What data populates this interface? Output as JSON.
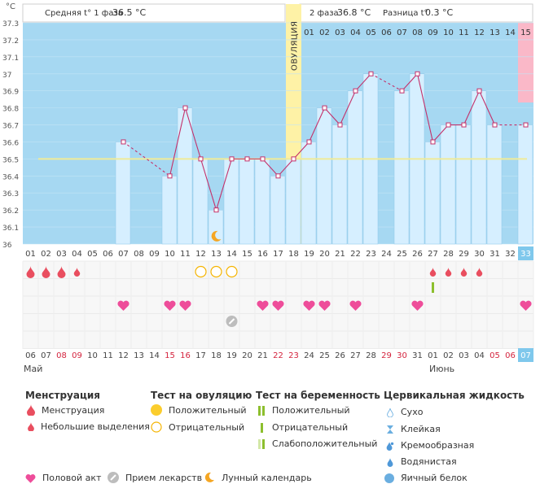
{
  "chart_data": {
    "type": "line",
    "title": "",
    "unit_label": "°C",
    "ylim": [
      36.0,
      37.3
    ],
    "y_ticks": [
      "37.3",
      "37.2",
      "37.1",
      "37",
      "36.9",
      "36.8",
      "36.7",
      "36.6",
      "36.5",
      "36.4",
      "36.3",
      "36.2",
      "36.1",
      "36"
    ],
    "header": {
      "phase1_label": "Средняя t° 1 фаза",
      "phase1_value": "36.5 °C",
      "phase2_label": "2 фаза",
      "phase2_value": "36.8 °C",
      "diff_label": "Разница t°",
      "diff_value": "0.3 °C"
    },
    "ovulation_label": "ОВУЛЯЦИЯ",
    "coverline": 36.5,
    "cycle_days": [
      "01",
      "02",
      "03",
      "04",
      "05",
      "06",
      "07",
      "08",
      "09",
      "10",
      "11",
      "12",
      "13",
      "14",
      "15",
      "16",
      "17",
      "18",
      "19",
      "20",
      "21",
      "22",
      "23",
      "24",
      "25",
      "26",
      "27",
      "28",
      "29",
      "30",
      "31",
      "32",
      "33"
    ],
    "post_ovulation_days": [
      "01",
      "02",
      "03",
      "04",
      "05",
      "06",
      "07",
      "08",
      "09",
      "10",
      "11",
      "12",
      "13",
      "14",
      "15"
    ],
    "dates": [
      "06",
      "07",
      "08",
      "09",
      "10",
      "11",
      "12",
      "13",
      "14",
      "15",
      "16",
      "17",
      "18",
      "19",
      "20",
      "21",
      "22",
      "23",
      "24",
      "25",
      "26",
      "27",
      "28",
      "29",
      "30",
      "31",
      "01",
      "02",
      "03",
      "04",
      "05",
      "06",
      "07"
    ],
    "weekend_dates": [
      "08",
      "09",
      "15",
      "16",
      "22",
      "23",
      "29",
      "30",
      "05",
      "06"
    ],
    "months": [
      "Май",
      "Июнь"
    ],
    "temperatures": [
      null,
      null,
      null,
      null,
      null,
      null,
      36.6,
      null,
      null,
      36.4,
      36.8,
      36.5,
      36.2,
      36.5,
      36.5,
      36.5,
      36.4,
      36.5,
      36.6,
      36.8,
      36.7,
      36.9,
      37.0,
      null,
      36.9,
      37.0,
      36.6,
      36.7,
      36.7,
      36.9,
      36.7,
      null,
      36.7
    ],
    "menstruation": [
      "big",
      "big",
      "big",
      "small",
      null,
      null,
      null,
      null,
      null,
      null,
      null,
      null,
      null,
      null,
      null,
      null,
      null,
      null,
      null,
      null,
      null,
      null,
      null,
      null,
      null,
      null,
      "small",
      "small",
      "small",
      "small",
      null,
      null,
      null
    ],
    "ovulation_test_negative_days": [
      "12",
      "13",
      "14"
    ],
    "pregnancy_test_positive_days": [
      "27"
    ],
    "intercourse_days": [
      "07",
      "10",
      "11",
      "16",
      "17",
      "19",
      "20",
      "22",
      "26",
      "33"
    ],
    "medication_days": [
      "14"
    ],
    "moon_days": [
      "13"
    ],
    "colors": {
      "plot_bg": "#a6d8f2",
      "bar": "#d6efff",
      "bar_edge": "#8fc7e8",
      "line": "#c4306a",
      "marker": "#c4306a",
      "ovulation_band": "#fef2a6",
      "current_day_bg": "#fab8c8",
      "coverline": "#f0eb98",
      "drop": "#e94e5f",
      "heart": "#ee4d9a",
      "weekend": "#d4243e"
    }
  },
  "legend": {
    "menstruation": {
      "title": "Менструация",
      "items": [
        "Менструация",
        "Небольшие выделения"
      ]
    },
    "ovulation_test": {
      "title": "Тест на овуляцию",
      "items": [
        "Положительный",
        "Отрицательный"
      ]
    },
    "pregnancy_test": {
      "title": "Тест на беременность",
      "items": [
        "Положительный",
        "Отрицательный",
        "Слабоположительный"
      ]
    },
    "cervical_fluid": {
      "title": "Цервикальная жидкость",
      "items": [
        "Сухо",
        "Клейкая",
        "Кремообразная",
        "Водянистая",
        "Яичный белок"
      ]
    },
    "bottom": [
      "Половой акт",
      "Прием лекарств",
      "Лунный календарь"
    ]
  }
}
